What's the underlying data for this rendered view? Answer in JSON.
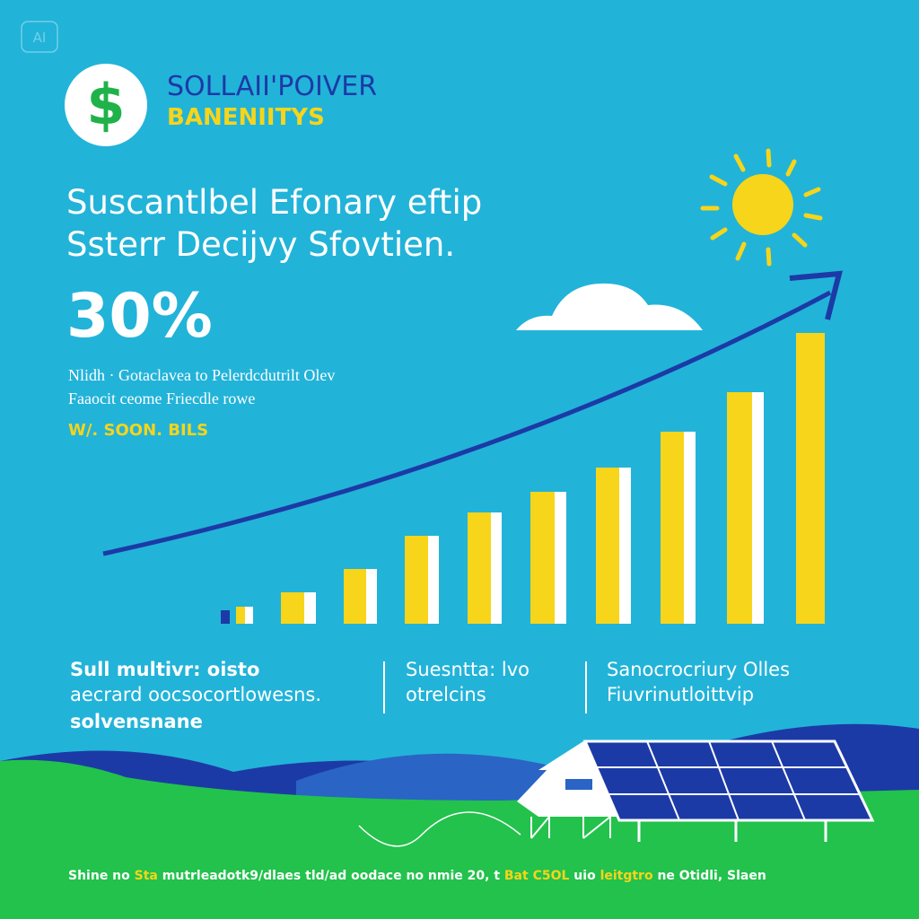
{
  "badge": "AI",
  "logo": {
    "symbol": "$",
    "line1": "SOLLAII'POIVER",
    "line2": "BANENIITYS"
  },
  "headline": [
    "Suscantlbel Efonary eftip",
    "Ssterr  Decijvy Sfovtien."
  ],
  "stat": "30%",
  "description": [
    "Nlidh · Gotaclavea to Pelerdcdutrilt Olev",
    "Faaocit ceome Friecdle rowe"
  ],
  "tagline": "W/. SOON. BILS",
  "columns": [
    [
      "Sull multivr: oisto",
      "aecrard oocsocortlowesns.",
      "solvensnane"
    ],
    [
      "Suesntta: lvo",
      "otrelcins"
    ],
    [
      "Sanocrocriury  Olles",
      "Fiuvrinutloittvip"
    ]
  ],
  "footer": [
    "Shine no",
    "Sta",
    "mutrleadotk9/dlaes tld/ad oodace no nmie 20, t",
    "Bat C5OL",
    "uio",
    "leitgtro",
    "ne Otidli, Slaen"
  ]
}
